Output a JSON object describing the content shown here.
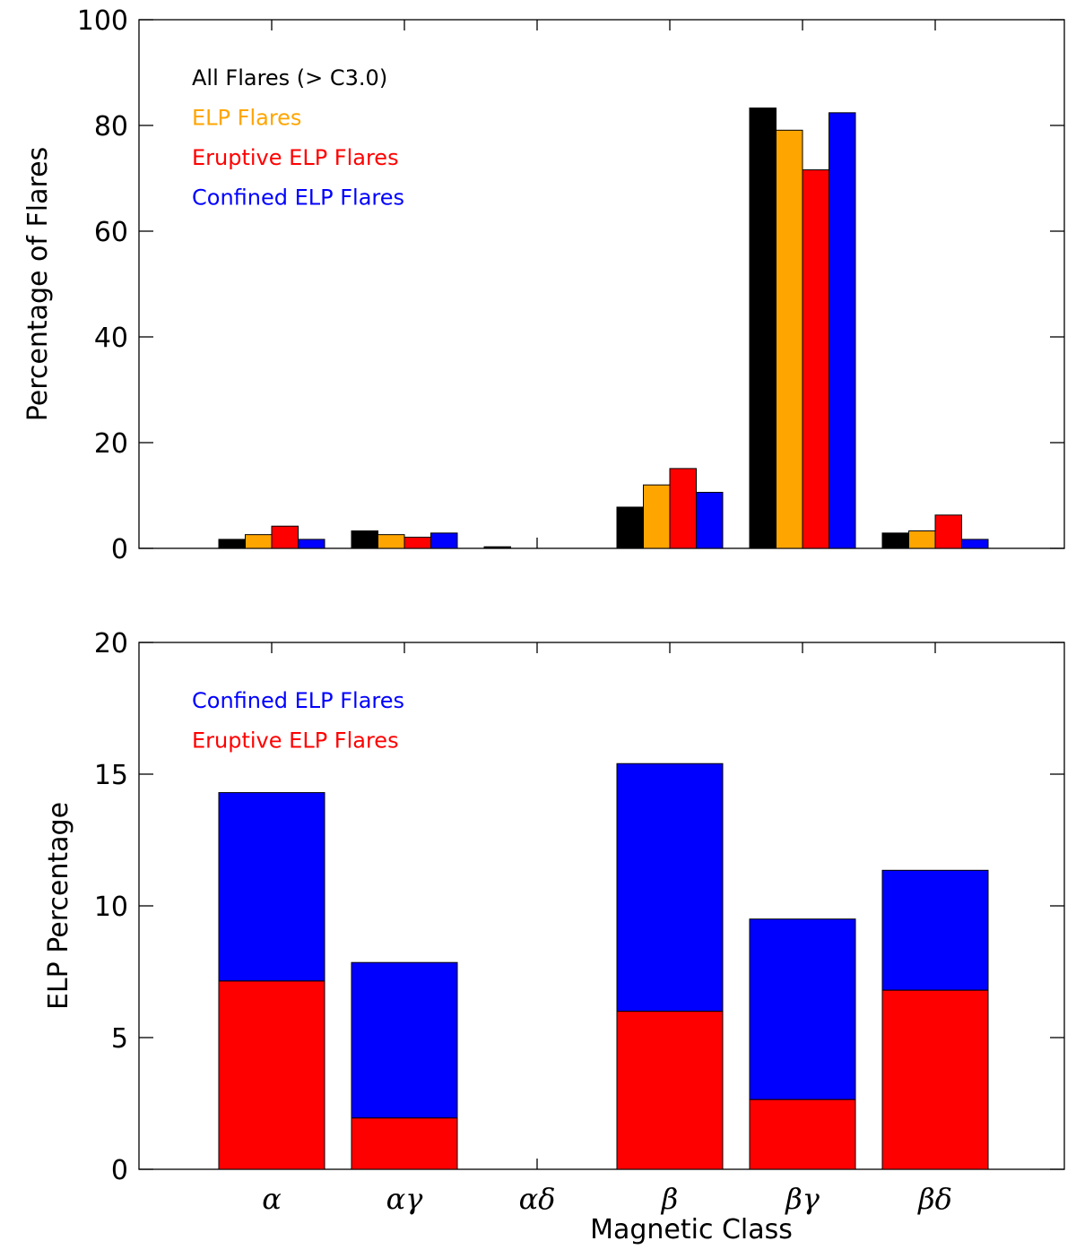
{
  "chart_data": [
    {
      "type": "bar",
      "ylabel": "Percentage of Flares",
      "xlabel": "",
      "ylim": [
        0,
        100
      ],
      "yticks": [
        0,
        20,
        40,
        60,
        80,
        100
      ],
      "categories": [
        "α",
        "αγ",
        "αδ",
        "β",
        "βγ",
        "βδ"
      ],
      "legend_position": "top-left",
      "series": [
        {
          "name": "All Flares (> C3.0)",
          "color": "#000000",
          "values": [
            1.7,
            3.3,
            0.3,
            7.8,
            83.3,
            2.9
          ]
        },
        {
          "name": "ELP Flares",
          "color": "#FFA500",
          "values": [
            2.6,
            2.6,
            0,
            12.0,
            79.1,
            3.3
          ]
        },
        {
          "name": "Eruptive ELP Flares",
          "color": "#FF0000",
          "values": [
            4.2,
            2.1,
            0,
            15.1,
            71.6,
            6.3
          ]
        },
        {
          "name": "Confined ELP Flares",
          "color": "#0000FF",
          "values": [
            1.7,
            2.9,
            0,
            10.6,
            82.4,
            1.7
          ]
        }
      ]
    },
    {
      "type": "bar",
      "stacked": true,
      "ylabel": "ELP Percentage",
      "xlabel": "Magnetic Class",
      "ylim": [
        0,
        20
      ],
      "yticks": [
        0,
        5,
        10,
        15,
        20
      ],
      "categories": [
        "α",
        "αγ",
        "αδ",
        "β",
        "βγ",
        "βδ"
      ],
      "legend_position": "top-left",
      "series": [
        {
          "name": "Eruptive ELP Flares",
          "color": "#FF0000",
          "values": [
            7.15,
            1.95,
            0,
            6.0,
            2.65,
            6.8
          ]
        },
        {
          "name": "Confined ELP Flares",
          "color": "#0000FF",
          "values": [
            7.15,
            5.9,
            0,
            9.4,
            6.85,
            4.55
          ]
        }
      ],
      "legend": [
        {
          "name": "Confined ELP Flares",
          "color": "#0000FF"
        },
        {
          "name": "Eruptive ELP Flares",
          "color": "#FF0000"
        }
      ]
    }
  ]
}
